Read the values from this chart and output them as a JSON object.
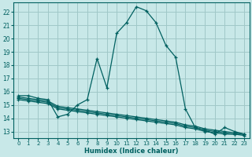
{
  "xlabel": "Humidex (Indice chaleur)",
  "ylabel": "",
  "bg_color": "#c8e8e8",
  "grid_color": "#a0c8c8",
  "line_color": "#006060",
  "xlim": [
    -0.5,
    23.5
  ],
  "ylim": [
    12.5,
    22.7
  ],
  "xticks": [
    0,
    1,
    2,
    3,
    4,
    5,
    6,
    7,
    8,
    9,
    10,
    11,
    12,
    13,
    14,
    15,
    16,
    17,
    18,
    19,
    20,
    21,
    22,
    23
  ],
  "yticks": [
    13,
    14,
    15,
    16,
    17,
    18,
    19,
    20,
    21,
    22
  ],
  "line1_x": [
    0,
    1,
    2,
    3,
    4,
    5,
    6,
    7,
    8,
    9,
    10,
    11,
    12,
    13,
    14,
    15,
    16,
    17,
    18,
    19,
    20,
    21,
    22,
    23
  ],
  "line1_y": [
    15.7,
    15.7,
    15.5,
    15.4,
    14.1,
    14.3,
    15.0,
    15.4,
    18.5,
    16.3,
    20.4,
    21.2,
    22.4,
    22.1,
    21.2,
    19.5,
    18.6,
    14.7,
    13.3,
    13.1,
    12.8,
    13.3,
    13.0,
    12.8
  ],
  "line2_x": [
    0,
    1,
    2,
    3,
    4,
    5,
    6,
    7,
    8,
    9,
    10,
    11,
    12,
    13,
    14,
    15,
    16,
    17,
    18,
    19,
    20,
    21,
    22,
    23
  ],
  "line2_y": [
    15.6,
    15.5,
    15.4,
    15.3,
    14.9,
    14.8,
    14.7,
    14.6,
    14.5,
    14.4,
    14.3,
    14.2,
    14.1,
    14.0,
    13.9,
    13.8,
    13.7,
    13.5,
    13.4,
    13.2,
    13.1,
    13.0,
    12.9,
    12.8
  ],
  "line3_x": [
    0,
    1,
    2,
    3,
    4,
    5,
    6,
    7,
    8,
    9,
    10,
    11,
    12,
    13,
    14,
    15,
    16,
    17,
    18,
    19,
    20,
    21,
    22,
    23
  ],
  "line3_y": [
    15.5,
    15.4,
    15.3,
    15.2,
    14.8,
    14.7,
    14.6,
    14.5,
    14.4,
    14.3,
    14.2,
    14.1,
    14.0,
    13.9,
    13.8,
    13.7,
    13.6,
    13.4,
    13.3,
    13.1,
    13.0,
    12.9,
    12.8,
    12.8
  ],
  "line4_x": [
    0,
    1,
    2,
    3,
    4,
    5,
    6,
    7,
    8,
    9,
    10,
    11,
    12,
    13,
    14,
    15,
    16,
    17,
    18,
    19,
    20,
    21,
    22,
    23
  ],
  "line4_y": [
    15.4,
    15.3,
    15.2,
    15.1,
    14.7,
    14.6,
    14.5,
    14.4,
    14.3,
    14.2,
    14.1,
    14.0,
    13.9,
    13.8,
    13.7,
    13.6,
    13.5,
    13.3,
    13.2,
    13.0,
    12.9,
    12.8,
    12.8,
    12.7
  ]
}
